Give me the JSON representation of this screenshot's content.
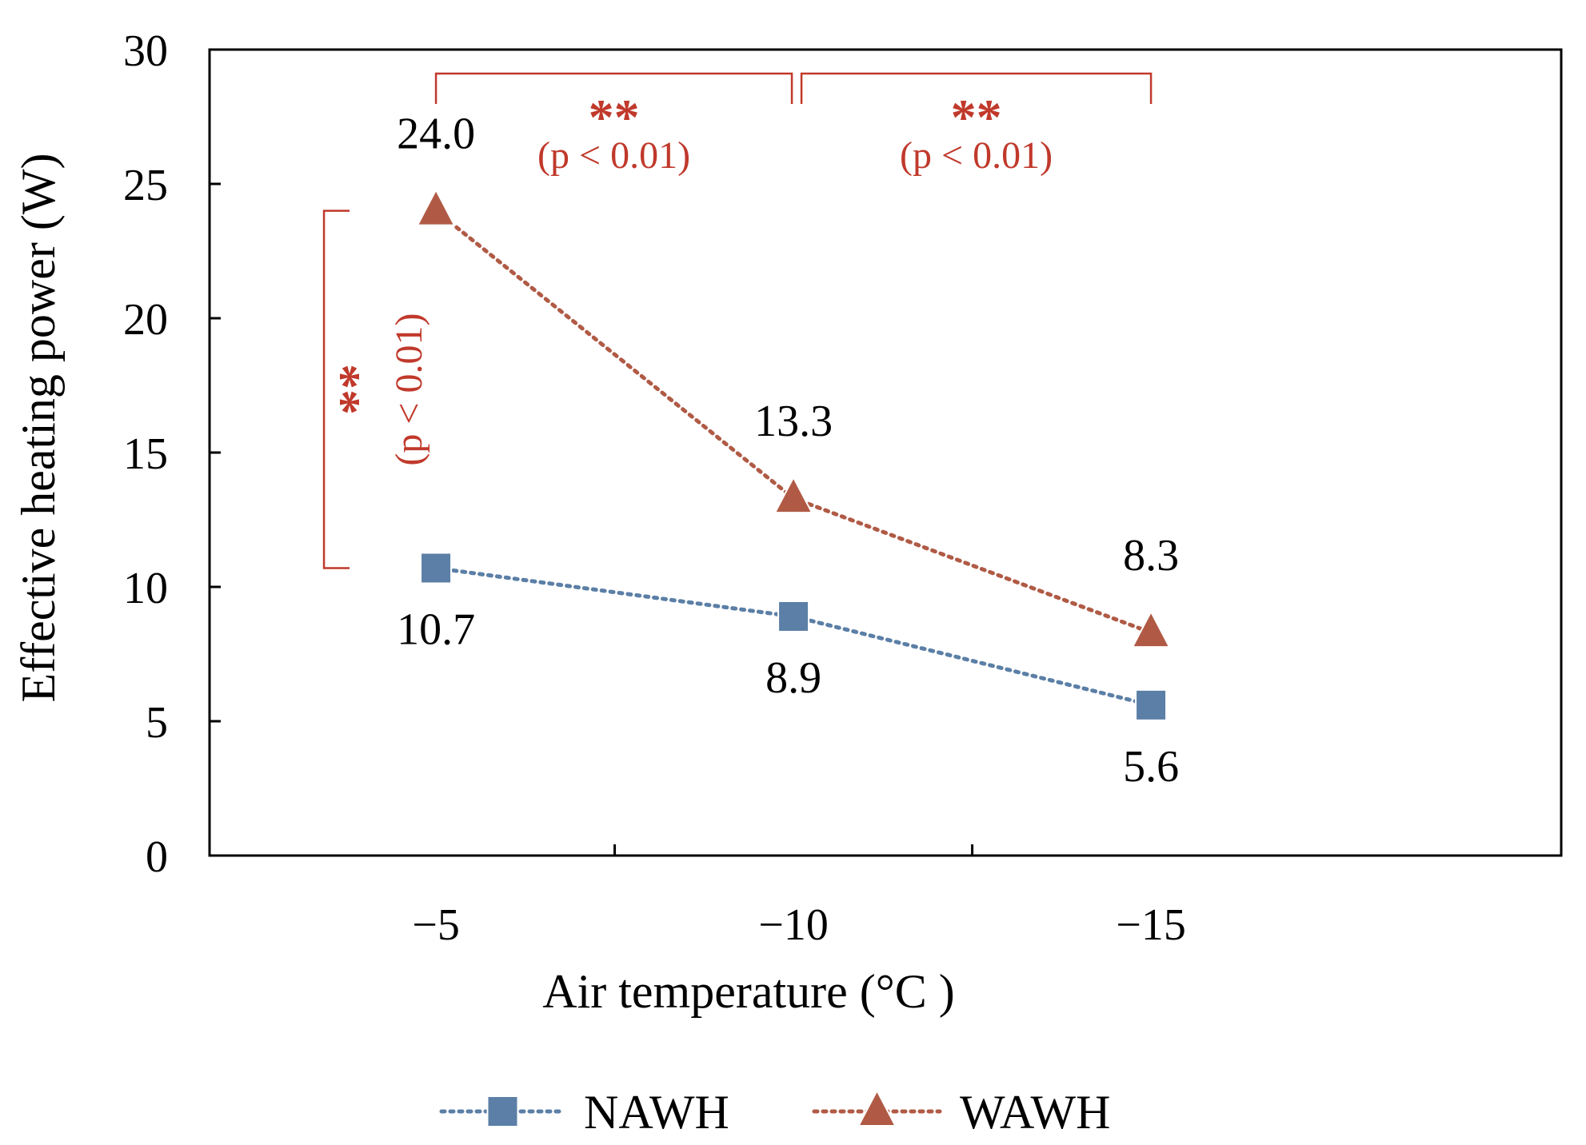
{
  "chart_data": {
    "type": "line",
    "xlabel": "Air temperature (°C )",
    "ylabel": "Effective heating power (W)",
    "categories": [
      "−5",
      "−10",
      "−15"
    ],
    "ylim": [
      0,
      30
    ],
    "yticks": [
      0,
      5,
      10,
      15,
      20,
      25,
      30
    ],
    "ytick_labels": [
      "0",
      "5",
      "10",
      "15",
      "20",
      "25",
      "30"
    ],
    "grid": false,
    "legend_position": "bottom",
    "series": [
      {
        "name": "NAWH",
        "marker": "square",
        "line_style": "dotted",
        "color": "#5b7fa6",
        "values": [
          10.7,
          8.9,
          5.6
        ],
        "labels": [
          "10.7",
          "8.9",
          "5.6"
        ],
        "label_side": "below"
      },
      {
        "name": "WAWH",
        "marker": "triangle",
        "line_style": "dotted",
        "color": "#b05a45",
        "values": [
          24.0,
          13.3,
          8.3
        ],
        "labels": [
          "24.0",
          "13.3",
          "8.3"
        ],
        "label_side": "above"
      }
    ],
    "annotations": [
      {
        "kind": "bracket-top",
        "between": [
          "−5",
          "−10"
        ],
        "stars": "**",
        "text": "(p < 0.01)"
      },
      {
        "kind": "bracket-top",
        "between": [
          "−10",
          "−15"
        ],
        "stars": "**",
        "text": "(p < 0.01)"
      },
      {
        "kind": "bracket-vertical",
        "at": "−5",
        "between_series": [
          "NAWH",
          "WAWH"
        ],
        "stars": "**",
        "text": "(p < 0.01)"
      }
    ],
    "annotation_color": "#c0392b"
  }
}
